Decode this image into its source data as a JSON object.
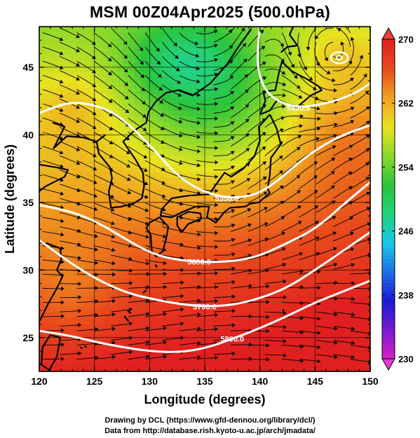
{
  "title": "MSM 00Z04Apr2025 (500.0hPa)",
  "credit_line1": "Drawing by DCL (https://www.gfd-dennou.org/library/dcl/)",
  "credit_line2": "Data from http://database.rish.kyoto-u.ac.jp/arch/jmadata/",
  "chart_data": {
    "type": "heatmap",
    "xlabel": "Longitude (degrees)",
    "ylabel": "Latitude  (degrees)",
    "xlim": [
      120,
      150
    ],
    "ylim": [
      22.5,
      48
    ],
    "x_ticks": [
      120,
      125,
      130,
      135,
      140,
      145,
      150
    ],
    "y_ticks": [
      25,
      30,
      35,
      40,
      45
    ],
    "colorbar": {
      "range": [
        230,
        270
      ],
      "ticks": [
        230,
        238,
        246,
        254,
        262,
        270
      ],
      "colors": [
        "#d91ec8",
        "#7a1ad0",
        "#1a1ad4",
        "#1e6ee6",
        "#18c8e8",
        "#22d27a",
        "#2cc43a",
        "#8cd82a",
        "#e8e420",
        "#f0a020",
        "#e84a1c",
        "#e02020"
      ]
    },
    "contour_labels": [
      "5400.0",
      "5550.0",
      "5600.0",
      "5700.0",
      "5800.0"
    ],
    "contours": [
      {
        "label": "5400.0",
        "points": [
          [
            140.0,
            48.0
          ],
          [
            139.8,
            46.5
          ],
          [
            139.8,
            45.0
          ],
          [
            140.3,
            43.5
          ],
          [
            141.5,
            42.5
          ],
          [
            143.5,
            42.0
          ],
          [
            146.0,
            42.3
          ],
          [
            148.5,
            43.0
          ],
          [
            150.0,
            43.8
          ]
        ]
      },
      {
        "label": "5550.0",
        "points": [
          [
            120.0,
            41.6
          ],
          [
            122.0,
            42.3
          ],
          [
            124.0,
            42.4
          ],
          [
            126.5,
            41.8
          ],
          [
            128.5,
            40.5
          ],
          [
            130.5,
            38.8
          ],
          [
            132.5,
            37.0
          ],
          [
            134.5,
            35.9
          ],
          [
            137.0,
            35.3
          ],
          [
            139.5,
            35.5
          ],
          [
            141.5,
            36.5
          ],
          [
            144.0,
            38.3
          ],
          [
            146.5,
            39.6
          ],
          [
            148.5,
            40.3
          ],
          [
            150.0,
            40.7
          ]
        ]
      },
      {
        "label": "5600.0",
        "points": [
          [
            120.0,
            34.8
          ],
          [
            122.0,
            34.5
          ],
          [
            124.0,
            34.0
          ],
          [
            126.0,
            33.2
          ],
          [
            128.0,
            32.2
          ],
          [
            130.0,
            31.3
          ],
          [
            132.0,
            30.8
          ],
          [
            134.5,
            30.6
          ],
          [
            137.0,
            30.6
          ],
          [
            139.5,
            30.9
          ],
          [
            142.0,
            31.8
          ],
          [
            145.0,
            33.0
          ],
          [
            147.5,
            34.8
          ],
          [
            150.0,
            36.5
          ]
        ]
      },
      {
        "label": "5700.0",
        "points": [
          [
            120.0,
            32.2
          ],
          [
            122.0,
            31.0
          ],
          [
            124.0,
            29.9
          ],
          [
            126.0,
            29.0
          ],
          [
            128.0,
            28.3
          ],
          [
            130.0,
            27.9
          ],
          [
            132.5,
            27.5
          ],
          [
            135.0,
            27.3
          ],
          [
            137.5,
            27.4
          ],
          [
            140.0,
            27.9
          ],
          [
            142.5,
            28.7
          ],
          [
            145.0,
            30.0
          ],
          [
            147.5,
            31.4
          ],
          [
            150.0,
            32.8
          ]
        ]
      },
      {
        "label": "5800.0",
        "points": [
          [
            120.0,
            25.5
          ],
          [
            122.5,
            25.2
          ],
          [
            125.0,
            24.7
          ],
          [
            127.5,
            24.3
          ],
          [
            130.0,
            24.0
          ],
          [
            132.5,
            23.9
          ],
          [
            135.0,
            24.2
          ],
          [
            137.5,
            24.9
          ],
          [
            140.0,
            25.7
          ],
          [
            142.5,
            26.6
          ],
          [
            145.0,
            27.6
          ],
          [
            147.5,
            28.4
          ],
          [
            150.0,
            29.2
          ]
        ]
      }
    ],
    "low_center": [
      147.2,
      45.7
    ]
  }
}
